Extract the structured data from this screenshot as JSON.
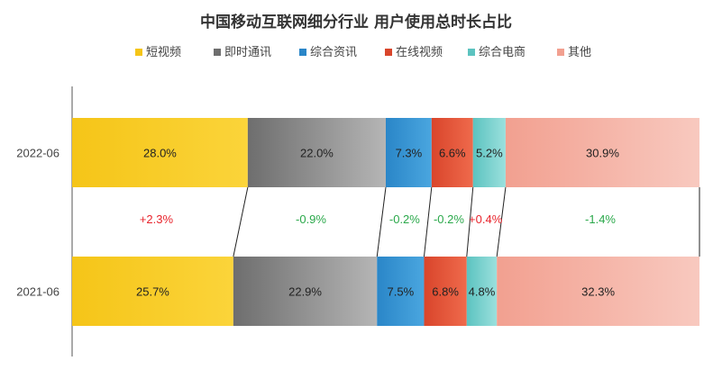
{
  "chart_data": {
    "type": "bar",
    "orientation": "horizontal",
    "stacked": "percent",
    "title": "中国移动互联网细分行业 用户使用总时长占比",
    "legend_position": "top",
    "categories": [
      "2022-06",
      "2021-06"
    ],
    "series": [
      {
        "name": "短视频",
        "values": [
          28.0,
          25.7
        ],
        "labels": [
          "28.0%",
          "25.7%"
        ],
        "color": "#f5c518",
        "color_light": "#fbd43a"
      },
      {
        "name": "即时通讯",
        "values": [
          22.0,
          22.9
        ],
        "labels": [
          "22.0%",
          "22.9%"
        ],
        "color": "#6e6e6e",
        "color_light": "#b5b5b5"
      },
      {
        "name": "综合资讯",
        "values": [
          7.3,
          7.5
        ],
        "labels": [
          "7.3%",
          "7.5%"
        ],
        "color": "#2a86c8",
        "color_light": "#4aa6df"
      },
      {
        "name": "在线视频",
        "values": [
          6.6,
          6.8
        ],
        "labels": [
          "6.6%",
          "6.8%"
        ],
        "color": "#d9452b",
        "color_light": "#ef6a4c"
      },
      {
        "name": "综合电商",
        "values": [
          5.2,
          4.8
        ],
        "labels": [
          "5.2%",
          "4.8%"
        ],
        "color": "#5cc3c0",
        "color_light": "#9be0dd"
      },
      {
        "name": "其他",
        "values": [
          30.9,
          32.3
        ],
        "labels": [
          "30.9%",
          "32.3%"
        ],
        "color": "#f2a090",
        "color_light": "#f8c9bf"
      }
    ],
    "changes": [
      "+2.3%",
      "-0.9%",
      "-0.2%",
      "-0.2%",
      "+0.4%",
      "-1.4%"
    ],
    "change_colors": {
      "up": "#e8242c",
      "down": "#2aa84a"
    },
    "xlim": [
      0,
      100
    ],
    "grid": false
  }
}
